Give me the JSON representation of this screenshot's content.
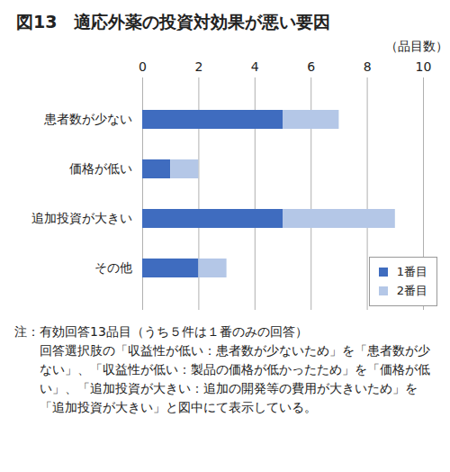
{
  "chart_data": {
    "type": "bar",
    "orientation": "horizontal",
    "stacked": true,
    "title": "図13　適応外薬の投資対効果が悪い要因",
    "x_label": "（品目数）",
    "categories": [
      "患者数が少ない",
      "価格が低い",
      "追加投資が大きい",
      "その他"
    ],
    "series": [
      {
        "name": "1番目",
        "color": "#3f6cbf",
        "values": [
          5,
          1,
          5,
          2
        ]
      },
      {
        "name": "2番目",
        "color": "#b4c7e7",
        "values": [
          2,
          1,
          4,
          1
        ]
      }
    ],
    "xlim": [
      0,
      10
    ],
    "xticks": [
      0,
      2,
      4,
      6,
      8,
      10
    ],
    "grid": true,
    "legend": "bottom-right",
    "notes": [
      "注：有効回答13品目（うち５件は１番のみの回答）",
      "回答選択肢の「収益性が低い：患者数が少ないため」を「患者数が少ない」、「収益性が低い：製品の価格が低かったため」を「価格が低い」、「追加投資が大きい：追加の開発等の費用が大きいため」を「追加投資が大きい」と図中にて表示している。"
    ]
  }
}
